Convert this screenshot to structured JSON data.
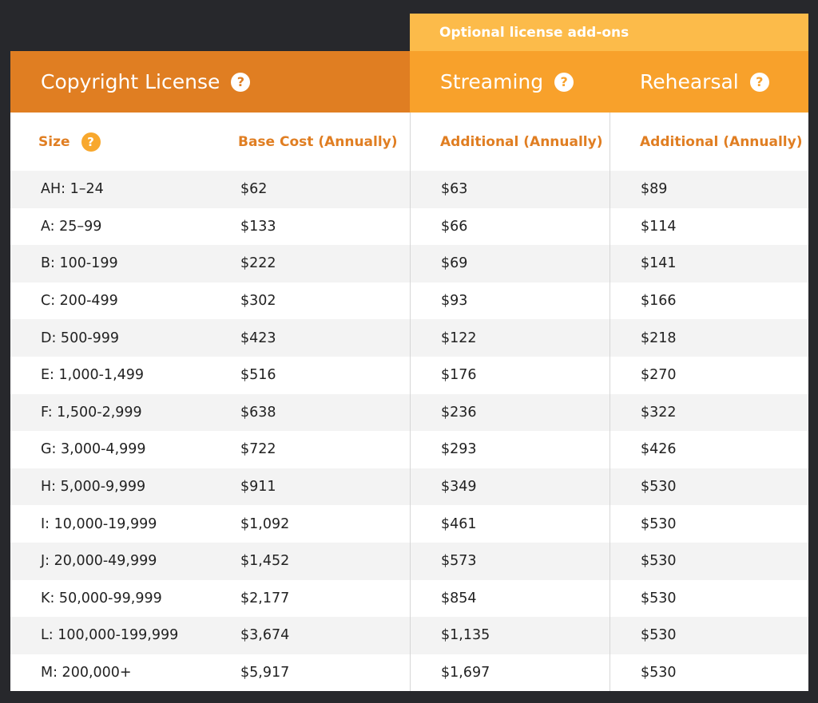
{
  "banner": {
    "addons_label": "Optional license add-ons"
  },
  "header": {
    "copyright": "Copyright License",
    "streaming": "Streaming",
    "rehearsal": "Rehearsal",
    "help_glyph": "?"
  },
  "subheader": {
    "size": "Size",
    "base_cost": "Base Cost (Annually)",
    "streaming_additional": "Additional (Annually)",
    "rehearsal_additional": "Additional (Annually)"
  },
  "rows": [
    {
      "size": "AH: 1–24",
      "base": "$62",
      "streaming": "$63",
      "rehearsal": "$89"
    },
    {
      "size": "A: 25–99",
      "base": "$133",
      "streaming": "$66",
      "rehearsal": "$114"
    },
    {
      "size": "B: 100-199",
      "base": "$222",
      "streaming": "$69",
      "rehearsal": "$141"
    },
    {
      "size": "C: 200-499",
      "base": "$302",
      "streaming": "$93",
      "rehearsal": "$166"
    },
    {
      "size": "D: 500-999",
      "base": "$423",
      "streaming": "$122",
      "rehearsal": "$218"
    },
    {
      "size": "E: 1,000-1,499",
      "base": "$516",
      "streaming": "$176",
      "rehearsal": "$270"
    },
    {
      "size": "F: 1,500-2,999",
      "base": "$638",
      "streaming": "$236",
      "rehearsal": "$322"
    },
    {
      "size": "G: 3,000-4,999",
      "base": "$722",
      "streaming": "$293",
      "rehearsal": "$426"
    },
    {
      "size": "H: 5,000-9,999",
      "base": "$911",
      "streaming": "$349",
      "rehearsal": "$530"
    },
    {
      "size": "I: 10,000-19,999",
      "base": "$1,092",
      "streaming": "$461",
      "rehearsal": "$530"
    },
    {
      "size": "J: 20,000-49,999",
      "base": "$1,452",
      "streaming": "$573",
      "rehearsal": "$530"
    },
    {
      "size": "K: 50,000-99,999",
      "base": "$2,177",
      "streaming": "$854",
      "rehearsal": "$530"
    },
    {
      "size": "L: 100,000-199,999",
      "base": "$3,674",
      "streaming": "$1,135",
      "rehearsal": "$530"
    },
    {
      "size": "M: 200,000+",
      "base": "$5,917",
      "streaming": "$1,697",
      "rehearsal": "$530"
    }
  ],
  "colors": {
    "background": "#27282c",
    "copyright_header": "#e07e22",
    "addon_header": "#f8a12b",
    "addon_banner": "#fcbb4a",
    "accent_text": "#e07e22",
    "row_alt": "#f3f3f3"
  },
  "icons": {
    "help": "question-circle-icon"
  }
}
